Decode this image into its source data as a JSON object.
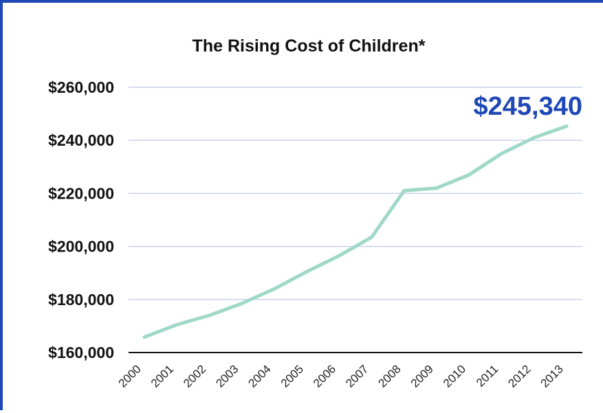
{
  "colors": {
    "frame_border": "#1f47b6",
    "line": "#9fd8c9",
    "grid": "#c9d0e8",
    "axis": "#111111",
    "callout": "#1f47b6"
  },
  "chart_data": {
    "type": "line",
    "title": "The Rising Cost of Children*",
    "xlabel": "",
    "ylabel": "",
    "x": [
      "2000",
      "2001",
      "2002",
      "2003",
      "2004",
      "2005",
      "2006",
      "2007",
      "2008",
      "2009",
      "2010",
      "2011",
      "2012",
      "2013"
    ],
    "series": [
      {
        "values": [
          165800,
          170500,
          174000,
          178500,
          184000,
          190500,
          196500,
          203500,
          221000,
          222000,
          227000,
          235000,
          241000,
          245340
        ]
      }
    ],
    "ylim": [
      160000,
      260000
    ],
    "yticks": [
      160000,
      180000,
      200000,
      220000,
      240000,
      260000
    ],
    "ytick_labels": [
      "$160,000",
      "$180,000",
      "$200,000",
      "$220,000",
      "$240,000",
      "$260,000"
    ],
    "grid": true,
    "legend": "none",
    "annotation": "$245,340"
  }
}
